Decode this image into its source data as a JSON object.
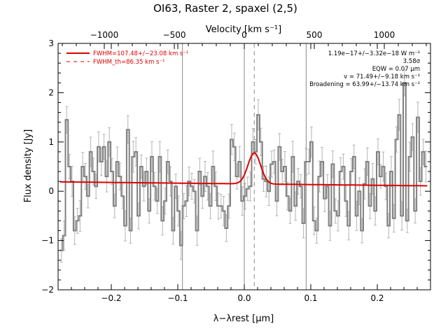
{
  "chart_data": {
    "type": "line",
    "title": "OI63, Raster 2, spaxel (2,5)",
    "xlabel": "λ−λrest [μm]",
    "ylabel": "Flux density [Jy]",
    "top_axis_label": "Velocity [km s⁻¹]",
    "xlim": [
      -0.28,
      0.28
    ],
    "ylim": [
      -2,
      3
    ],
    "top_xlim": [
      -1330,
      1330
    ],
    "x_ticks": [
      -0.2,
      -0.1,
      0.0,
      0.1,
      0.2
    ],
    "x_tick_labels": [
      "−0.2",
      "−0.1",
      "0.0",
      "0.1",
      "0.2"
    ],
    "y_ticks": [
      -2,
      -1,
      0,
      1,
      2,
      3
    ],
    "y_tick_labels": [
      "−2",
      "−1",
      "0",
      "1",
      "2",
      "3"
    ],
    "top_ticks": [
      -1000,
      -500,
      0,
      500,
      1000
    ],
    "top_tick_labels": [
      "−1000",
      "−500",
      "0",
      "500",
      "1000"
    ],
    "legend": [
      {
        "label": "FWHM=107.48+/−23.08 km s⁻¹",
        "style": "solid",
        "color": "#e00000"
      },
      {
        "label": "FWHM_th=86.35 km s⁻¹",
        "style": "dashed",
        "color": "#e00000"
      }
    ],
    "annotations": [
      "1.19e−17+/−3.32e−18 W m⁻²",
      "3.58σ",
      "EQW = 0.07 μm",
      "v = 71.49+/−9.18 km s⁻¹",
      "Broadening = 63.99+/−13.74 km s⁻¹"
    ],
    "vertical_lines": [
      -0.093,
      0.0,
      0.093
    ],
    "line_center": 0.015,
    "fit": {
      "continuum_start": 0.19,
      "continuum_end": 0.11,
      "amplitude": 0.63,
      "center": 0.015,
      "sigma": 0.0095
    },
    "series": [
      {
        "name": "",
        "style": "step",
        "color": "#808080",
        "x": [
          -0.275,
          -0.271,
          -0.267,
          -0.263,
          -0.259,
          -0.255,
          -0.251,
          -0.247,
          -0.243,
          -0.239,
          -0.235,
          -0.231,
          -0.227,
          -0.223,
          -0.219,
          -0.215,
          -0.211,
          -0.207,
          -0.203,
          -0.199,
          -0.195,
          -0.191,
          -0.187,
          -0.183,
          -0.179,
          -0.175,
          -0.171,
          -0.167,
          -0.163,
          -0.159,
          -0.155,
          -0.151,
          -0.147,
          -0.143,
          -0.139,
          -0.135,
          -0.131,
          -0.127,
          -0.123,
          -0.119,
          -0.115,
          -0.111,
          -0.107,
          -0.103,
          -0.099,
          -0.095,
          -0.091,
          -0.087,
          -0.083,
          -0.079,
          -0.075,
          -0.071,
          -0.067,
          -0.063,
          -0.059,
          -0.055,
          -0.051,
          -0.047,
          -0.043,
          -0.039,
          -0.035,
          -0.031,
          -0.027,
          -0.023,
          -0.019,
          -0.015,
          -0.011,
          -0.007,
          -0.003,
          0.001,
          0.005,
          0.009,
          0.013,
          0.017,
          0.021,
          0.025,
          0.029,
          0.033,
          0.037,
          0.041,
          0.045,
          0.049,
          0.053,
          0.057,
          0.061,
          0.065,
          0.069,
          0.073,
          0.077,
          0.081,
          0.085,
          0.089,
          0.093,
          0.097,
          0.101,
          0.105,
          0.109,
          0.113,
          0.117,
          0.121,
          0.125,
          0.129,
          0.133,
          0.137,
          0.141,
          0.145,
          0.149,
          0.153,
          0.157,
          0.161,
          0.165,
          0.169,
          0.173,
          0.177,
          0.181,
          0.185,
          0.189,
          0.193,
          0.197,
          0.201,
          0.205,
          0.209,
          0.213,
          0.217,
          0.221,
          0.225,
          0.229,
          0.233,
          0.237,
          0.241,
          0.245,
          0.249,
          0.253,
          0.257,
          0.261,
          0.265,
          0.269,
          0.273
        ],
        "y": [
          -1.2,
          -0.9,
          1.45,
          0.5,
          0.2,
          -0.8,
          -0.6,
          -0.5,
          0.5,
          0.3,
          -0.1,
          0.8,
          0.4,
          0.1,
          0.9,
          0.6,
          0.9,
          0.3,
          1.0,
          0.4,
          -0.3,
          0.6,
          0.3,
          -0.1,
          -0.7,
          1.25,
          -0.8,
          0.7,
          0.8,
          -0.5,
          0.5,
          0.1,
          0.4,
          -0.4,
          0.7,
          0.1,
          -0.2,
          0.7,
          -0.6,
          -0.2,
          0.6,
          0.2,
          -0.8,
          0.1,
          -0.4,
          -1.1,
          -0.3,
          -0.2,
          0.2,
          0.1,
          0.0,
          -0.8,
          0.4,
          -0.1,
          0.3,
          0.1,
          -0.3,
          0.5,
          0.1,
          -0.3,
          -0.3,
          -0.4,
          -0.75,
          -0.3,
          1.05,
          0.9,
          0.3,
          0.6,
          -0.2,
          -0.1,
          0.05,
          0.1,
          1.0,
          0.8,
          1.55,
          1.0,
          0.25,
          0.2,
          0.0,
          0.55,
          0.6,
          -0.2,
          0.9,
          0.4,
          0.5,
          -0.1,
          -0.4,
          0.7,
          -0.3,
          0.2,
          0.1,
          -0.65,
          0.6,
          0.6,
          1.0,
          -0.6,
          -0.8,
          0.3,
          0.6,
          -0.15,
          0.1,
          -0.7,
          0.55,
          -0.4,
          -0.5,
          0.4,
          0.5,
          -0.2,
          -0.7,
          0.4,
          0.7,
          -0.5,
          0.0,
          -0.8,
          0.15,
          0.6,
          -0.3,
          0.25,
          -0.4,
          0.8,
          0.3,
          0.5,
          0.1,
          -0.7,
          0.4,
          -0.55,
          1.05,
          1.55,
          -0.5,
          2.2,
          -0.6,
          0.7,
          1.1,
          -0.4,
          1.5,
          0.2,
          0.8,
          0.5
        ],
        "err": 0.28
      },
      {
        "name": "FWHM=107.48+/−23.08 km s⁻¹",
        "style": "fit",
        "color": "#e00000"
      }
    ]
  }
}
